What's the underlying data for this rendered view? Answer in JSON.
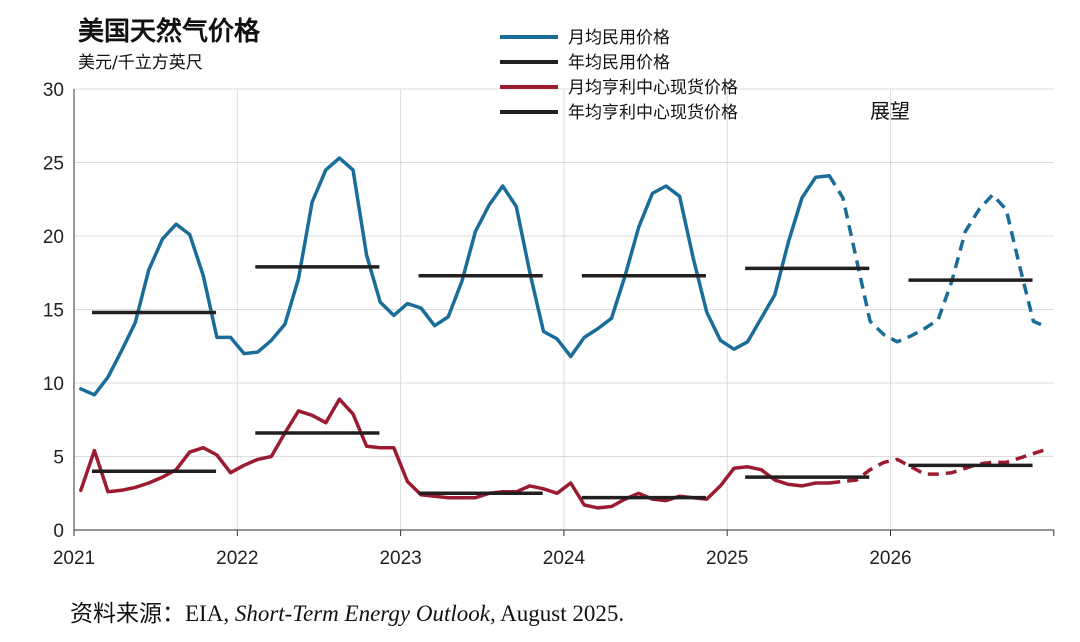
{
  "chart_data": {
    "type": "line",
    "title": "美国天然气价格",
    "subtitle": "美元/千立方英尺",
    "ylim": [
      0,
      30
    ],
    "yticks": [
      0,
      5,
      10,
      15,
      20,
      25,
      30
    ],
    "xlim": [
      "2021-01",
      "2026-12"
    ],
    "xticks": [
      "2021",
      "2022",
      "2023",
      "2024",
      "2025",
      "2026"
    ],
    "grid": true,
    "legend_position": "top-center",
    "outlook_label": "展望",
    "forecast_start": "2025-08",
    "series": [
      {
        "name": "月均民用价格",
        "color": "#1b6d99",
        "style": "line (dashed from 2025-08)",
        "x": [
          "2021-01",
          "2021-02",
          "2021-03",
          "2021-04",
          "2021-05",
          "2021-06",
          "2021-07",
          "2021-08",
          "2021-09",
          "2021-10",
          "2021-11",
          "2021-12",
          "2022-01",
          "2022-02",
          "2022-03",
          "2022-04",
          "2022-05",
          "2022-06",
          "2022-07",
          "2022-08",
          "2022-09",
          "2022-10",
          "2022-11",
          "2022-12",
          "2023-01",
          "2023-02",
          "2023-03",
          "2023-04",
          "2023-05",
          "2023-06",
          "2023-07",
          "2023-08",
          "2023-09",
          "2023-10",
          "2023-11",
          "2023-12",
          "2024-01",
          "2024-02",
          "2024-03",
          "2024-04",
          "2024-05",
          "2024-06",
          "2024-07",
          "2024-08",
          "2024-09",
          "2024-10",
          "2024-11",
          "2024-12",
          "2025-01",
          "2025-02",
          "2025-03",
          "2025-04",
          "2025-05",
          "2025-06",
          "2025-07",
          "2025-08",
          "2025-09",
          "2025-10",
          "2025-11",
          "2025-12",
          "2026-01",
          "2026-02",
          "2026-03",
          "2026-04",
          "2026-05",
          "2026-06",
          "2026-07",
          "2026-08",
          "2026-09",
          "2026-10",
          "2026-11",
          "2026-12"
        ],
        "values": [
          9.6,
          9.2,
          10.4,
          12.2,
          14.1,
          17.7,
          19.8,
          20.8,
          20.1,
          17.3,
          13.1,
          13.1,
          12.0,
          12.1,
          12.9,
          14.0,
          17.1,
          22.3,
          24.5,
          25.3,
          24.5,
          18.7,
          15.5,
          14.6,
          15.4,
          15.1,
          13.9,
          14.5,
          16.9,
          20.3,
          22.1,
          23.4,
          22.0,
          17.5,
          13.5,
          13.0,
          11.8,
          13.1,
          13.7,
          14.4,
          17.3,
          20.6,
          22.9,
          23.4,
          22.7,
          18.5,
          14.8,
          12.9,
          12.3,
          12.8,
          14.4,
          16.0,
          19.6,
          22.6,
          24.0,
          24.1,
          22.6,
          18.4,
          14.2,
          13.3,
          12.8,
          13.2,
          13.7,
          14.3,
          16.9,
          20.3,
          21.8,
          22.8,
          21.8,
          17.9,
          14.2,
          13.8
        ]
      },
      {
        "name": "年均民用价格",
        "color": "#231f20",
        "values_by_year": {
          "2021": 14.8,
          "2022": 17.9,
          "2023": 17.3,
          "2024": 17.3,
          "2025": 17.8,
          "2026": 17.0
        }
      },
      {
        "name": "月均亨利中心现货价格",
        "color": "#9b1b30",
        "style": "line (dashed from 2025-08)",
        "values": [
          2.7,
          5.4,
          2.6,
          2.7,
          2.9,
          3.2,
          3.6,
          4.1,
          5.3,
          5.6,
          5.1,
          3.9,
          4.4,
          4.8,
          5.0,
          6.6,
          8.1,
          7.8,
          7.3,
          8.9,
          7.9,
          5.7,
          5.6,
          5.6,
          3.3,
          2.4,
          2.3,
          2.2,
          2.2,
          2.2,
          2.5,
          2.6,
          2.6,
          3.0,
          2.8,
          2.5,
          3.2,
          1.7,
          1.5,
          1.6,
          2.1,
          2.5,
          2.1,
          2.0,
          2.3,
          2.2,
          2.1,
          3.0,
          4.2,
          4.3,
          4.1,
          3.4,
          3.1,
          3.0,
          3.2,
          3.2,
          3.3,
          3.4,
          4.1,
          4.6,
          4.8,
          4.3,
          3.8,
          3.8,
          3.9,
          4.2,
          4.5,
          4.6,
          4.6,
          4.9,
          5.2,
          5.5
        ]
      },
      {
        "name": "年均亨利中心现货价格",
        "color": "#231f20",
        "values_by_year": {
          "2021": 4.0,
          "2022": 6.6,
          "2023": 2.5,
          "2024": 2.2,
          "2025": 3.6,
          "2026": 4.4
        }
      }
    ]
  },
  "source": {
    "prefix": "资料来源：EIA, ",
    "publication": "Short-Term Energy Outlook,",
    "suffix": " August 2025."
  }
}
